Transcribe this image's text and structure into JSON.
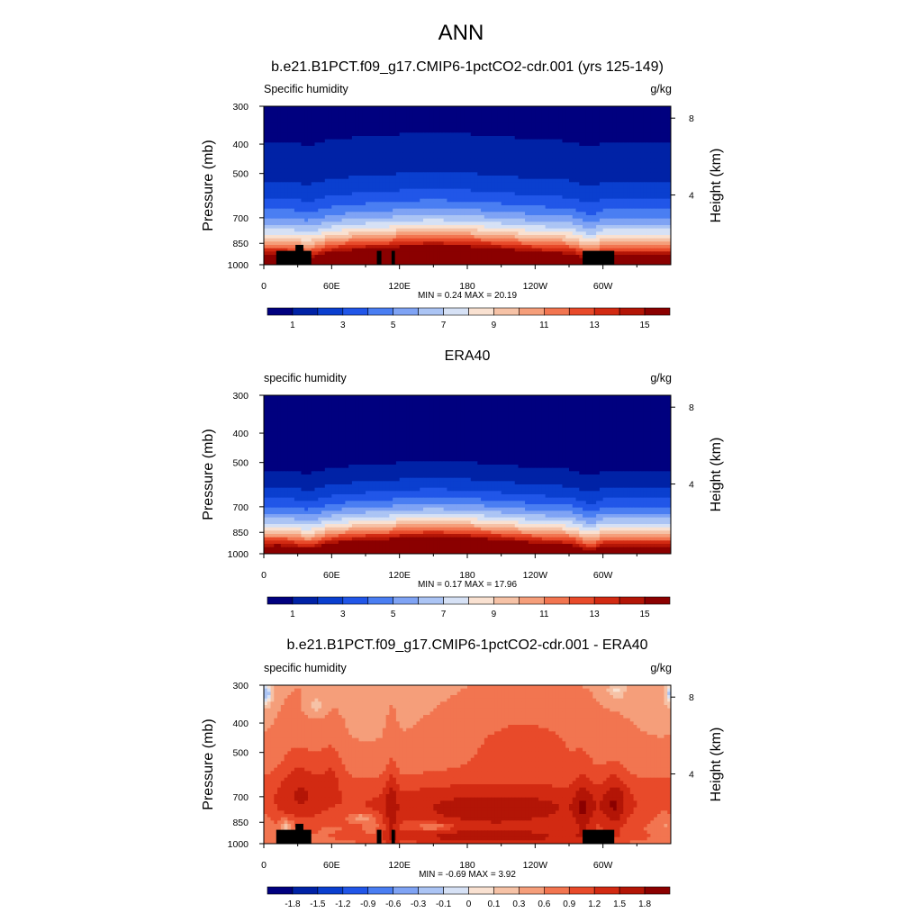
{
  "figure": {
    "title": "ANN",
    "case_name": "b.e21.B1PCT.f09_g17.CMIP6-1pctCO2-cdr.001 (yrs 125-149)"
  },
  "chart_data": [
    {
      "type": "heatmap",
      "panel_title": "",
      "variable": "Specific humidity",
      "units": "g/kg",
      "xlabel": "",
      "ylabel": "Pressure (mb)",
      "ylabel_right": "Height (km)",
      "x_ticks": [
        "0",
        "60E",
        "120E",
        "180",
        "120W",
        "60W"
      ],
      "x_tick_lons": [
        0,
        60,
        120,
        180,
        240,
        300
      ],
      "xlim": [
        0,
        360
      ],
      "y_ticks": [
        300,
        400,
        500,
        700,
        850,
        1000
      ],
      "ylim": [
        1000,
        300
      ],
      "y_right_ticks": [
        4,
        8
      ],
      "stats": "MIN =   0.24  MAX =  20.19",
      "colorbar_labels": [
        "1",
        "3",
        "5",
        "7",
        "9",
        "11",
        "13",
        "15"
      ],
      "colorbar_levels": [
        0,
        1,
        2,
        3,
        4,
        5,
        6,
        7,
        8,
        9,
        10,
        11,
        12,
        13,
        14,
        15,
        16
      ],
      "colorbar_colors": [
        "#00007f",
        "#0022a6",
        "#0a3fcf",
        "#2156e8",
        "#4a7ef2",
        "#7fa3f4",
        "#abc4f4",
        "#d6e1f5",
        "#f9e1d1",
        "#f6c2a6",
        "#f59e7a",
        "#f27550",
        "#e84a2a",
        "#d22a12",
        "#b31506",
        "#8b0000"
      ],
      "field": "model",
      "terrain_masked": true
    },
    {
      "type": "heatmap",
      "panel_title": "ERA40",
      "variable": "specific humidity",
      "units": "g/kg",
      "xlabel": "",
      "ylabel": "Pressure (mb)",
      "ylabel_right": "Height (km)",
      "x_ticks": [
        "0",
        "60E",
        "120E",
        "180",
        "120W",
        "60W"
      ],
      "x_tick_lons": [
        0,
        60,
        120,
        180,
        240,
        300
      ],
      "xlim": [
        0,
        360
      ],
      "y_ticks": [
        300,
        400,
        500,
        700,
        850,
        1000
      ],
      "ylim": [
        1000,
        300
      ],
      "y_right_ticks": [
        4,
        8
      ],
      "stats": "MIN =   0.17  MAX =  17.96",
      "colorbar_labels": [
        "1",
        "3",
        "5",
        "7",
        "9",
        "11",
        "13",
        "15"
      ],
      "colorbar_levels": [
        0,
        1,
        2,
        3,
        4,
        5,
        6,
        7,
        8,
        9,
        10,
        11,
        12,
        13,
        14,
        15,
        16
      ],
      "colorbar_colors": [
        "#00007f",
        "#0022a6",
        "#0a3fcf",
        "#2156e8",
        "#4a7ef2",
        "#7fa3f4",
        "#abc4f4",
        "#d6e1f5",
        "#f9e1d1",
        "#f6c2a6",
        "#f59e7a",
        "#f27550",
        "#e84a2a",
        "#d22a12",
        "#b31506",
        "#8b0000"
      ],
      "field": "obs",
      "terrain_masked": false
    },
    {
      "type": "heatmap",
      "panel_title": "b.e21.B1PCT.f09_g17.CMIP6-1pctCO2-cdr.001 - ERA40",
      "variable": "specific humidity",
      "units": "g/kg",
      "xlabel": "",
      "ylabel": "Pressure (mb)",
      "ylabel_right": "Height (km)",
      "x_ticks": [
        "0",
        "60E",
        "120E",
        "180",
        "120W",
        "60W"
      ],
      "x_tick_lons": [
        0,
        60,
        120,
        180,
        240,
        300
      ],
      "xlim": [
        0,
        360
      ],
      "y_ticks": [
        300,
        400,
        500,
        700,
        850,
        1000
      ],
      "ylim": [
        1000,
        300
      ],
      "y_right_ticks": [
        4,
        8
      ],
      "stats": "MIN =  -0.69  MAX =   3.92",
      "colorbar_labels": [
        "-1.8",
        "-1.5",
        "-1.2",
        "-0.9",
        "-0.6",
        "-0.3",
        "-0.1",
        "0",
        "0.1",
        "0.3",
        "0.6",
        "0.9",
        "1.2",
        "1.5",
        "1.8"
      ],
      "colorbar_levels": [
        -2.1,
        -1.8,
        -1.5,
        -1.2,
        -0.9,
        -0.6,
        -0.3,
        -0.1,
        0,
        0.1,
        0.3,
        0.6,
        0.9,
        1.2,
        1.5,
        1.8,
        2.1
      ],
      "colorbar_colors": [
        "#00007f",
        "#0022a6",
        "#0a3fcf",
        "#2156e8",
        "#4a7ef2",
        "#7fa3f4",
        "#abc4f4",
        "#d6e1f5",
        "#f9e1d1",
        "#f6c2a6",
        "#f59e7a",
        "#f27550",
        "#e84a2a",
        "#d22a12",
        "#b31506",
        "#8b0000"
      ],
      "field": "diff",
      "terrain_masked": true
    }
  ],
  "terrain_blocks": [
    {
      "lon": [
        11,
        42
      ],
      "p_top": 900
    },
    {
      "lon": [
        28,
        35
      ],
      "p_top": 860
    },
    {
      "lon": [
        100,
        104
      ],
      "p_top": 900
    },
    {
      "lon": [
        113,
        116
      ],
      "p_top": 900
    },
    {
      "lon": [
        282,
        310
      ],
      "p_top": 900
    }
  ]
}
